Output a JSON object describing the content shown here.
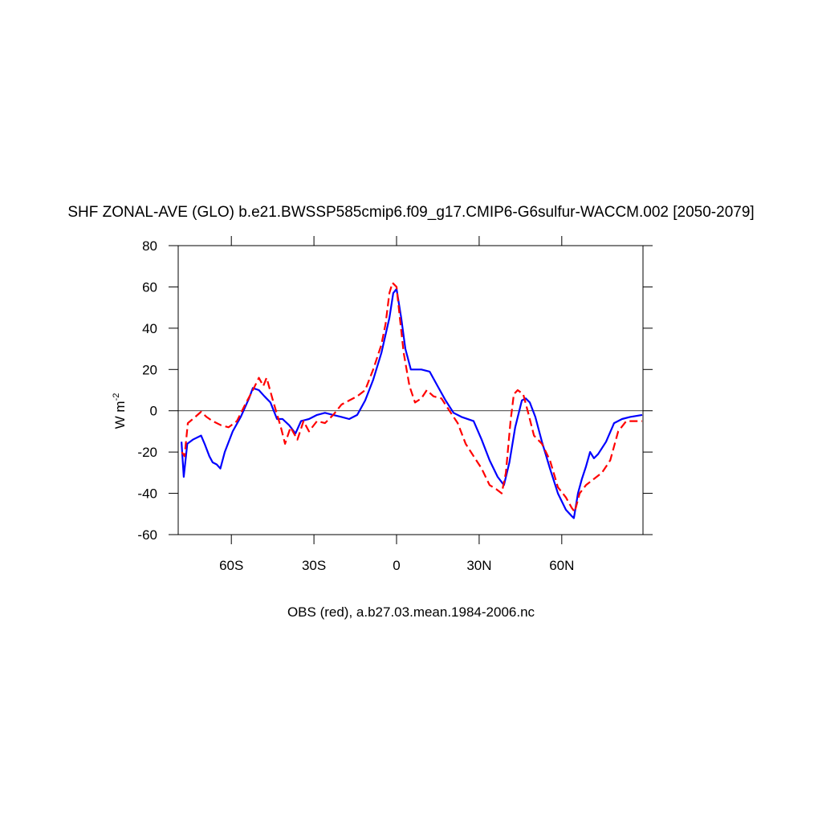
{
  "chart_data": {
    "type": "line",
    "title": "SHF ZONAL-AVE (GLO) b.e21.BWSSP585cmip6.f09_g17.CMIP6-G6sulfur-WACCM.002 [2050-2079]",
    "subtitle": "OBS (red), a.b27.03.mean.1984-2006.nc",
    "ylabel": "W m",
    "ylabel_sup": "-2",
    "xlim": [
      -79.3,
      89.5
    ],
    "ylim": [
      -60,
      80
    ],
    "xticks": [
      {
        "value": -60,
        "label": "60S"
      },
      {
        "value": -30,
        "label": "30S"
      },
      0,
      {
        "value": 30,
        "label": "30N"
      },
      {
        "value": 60,
        "label": "60N"
      }
    ],
    "yticks": [
      -60,
      -40,
      -20,
      0,
      20,
      40,
      60,
      80
    ],
    "reference_line": 0,
    "series": [
      {
        "color": "#0000ff",
        "dashed": false,
        "x": [
          -78.1,
          -77.3,
          -76,
          -74,
          -71,
          -69.7,
          -68,
          -66.8,
          -65.3,
          -64,
          -62.4,
          -59.5,
          -56.6,
          -53.6,
          -52.2,
          -50,
          -48,
          -45.8,
          -43.4,
          -41.4,
          -39,
          -36.7,
          -34.7,
          -31.8,
          -28.9,
          -26,
          -23,
          -20,
          -17.2,
          -14.3,
          -11.4,
          -8.5,
          -5.5,
          -2.6,
          -1.2,
          0,
          1.7,
          3.2,
          5.2,
          9,
          12,
          14.9,
          17.8,
          20.7,
          23.6,
          28,
          30.9,
          33.8,
          36.7,
          39,
          41,
          43.1,
          45.5,
          46.9,
          48.4,
          50.4,
          52.8,
          55.7,
          58.6,
          61.5,
          63.6,
          64.4,
          65.9,
          67.3,
          68.8,
          70.3,
          71.7,
          73.2,
          76.1,
          79,
          81.9,
          84.8,
          89.2
        ],
        "values": [
          -15,
          -32,
          -16,
          -14,
          -12,
          -16,
          -22,
          -25,
          -26,
          -28,
          -20,
          -10,
          -3,
          6,
          11,
          10,
          7,
          4,
          -4,
          -4,
          -7,
          -11,
          -5,
          -4,
          -2,
          -1,
          -2,
          -3,
          -4,
          -2,
          5,
          15,
          28,
          45,
          57,
          59,
          45,
          30,
          20,
          20,
          19,
          12,
          5,
          -1,
          -3,
          -5,
          -14,
          -24,
          -32,
          -36,
          -25,
          -8,
          5,
          6,
          4,
          -3,
          -15,
          -28,
          -40,
          -48,
          -51,
          -52,
          -40,
          -33,
          -27,
          -20,
          -23,
          -21,
          -15,
          -6,
          -4,
          -3,
          -2
        ]
      },
      {
        "color": "#ff0000",
        "dashed": true,
        "x": [
          -78,
          -77,
          -75.8,
          -74,
          -71,
          -69,
          -66.8,
          -63.8,
          -61,
          -58,
          -55,
          -52.2,
          -50,
          -48.4,
          -47.2,
          -44.9,
          -42,
          -40.5,
          -38.5,
          -36,
          -33.8,
          -31.8,
          -28.9,
          -26,
          -23,
          -20,
          -17.2,
          -14.3,
          -11.4,
          -8.5,
          -5.5,
          -4,
          -2.6,
          -1.5,
          0,
          1.2,
          2.6,
          4.7,
          6.7,
          9,
          11,
          13.4,
          16.3,
          19.2,
          22.2,
          25.1,
          28,
          30.9,
          33.8,
          36.2,
          38.2,
          39.7,
          41.4,
          42.6,
          44,
          46,
          47.8,
          49.9,
          52.8,
          55.7,
          58.6,
          61.5,
          63.6,
          64.7,
          66.5,
          68.8,
          71.7,
          74.6,
          77.6,
          80.5,
          83.4,
          86.3,
          89.2
        ],
        "values": [
          -20,
          -22,
          -6,
          -4,
          -0.5,
          -3,
          -5,
          -7,
          -8,
          -5,
          3,
          10,
          16,
          12,
          16,
          5,
          -8,
          -16,
          -8,
          -14,
          -5,
          -10,
          -5,
          -6,
          -2,
          3,
          5,
          7,
          10,
          20,
          32,
          42,
          57,
          62,
          60,
          45,
          28,
          12,
          4,
          6,
          10,
          7,
          6,
          0,
          -6,
          -16,
          -22,
          -28,
          -36,
          -38,
          -40,
          -30,
          -5,
          8,
          10,
          8,
          -1,
          -12,
          -16,
          -24,
          -37,
          -42,
          -47,
          -49,
          -40,
          -36,
          -33,
          -30,
          -24,
          -10,
          -5,
          -5,
          -5
        ]
      }
    ]
  }
}
